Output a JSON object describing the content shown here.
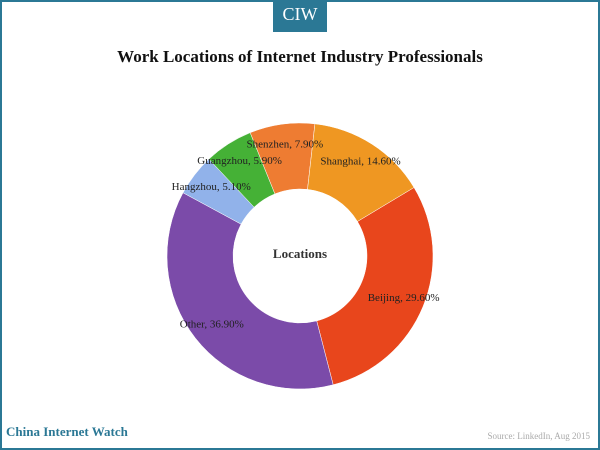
{
  "brand": "CIW",
  "chart_data": {
    "type": "donut",
    "title": "Work Locations of Internet Industry Professionals",
    "center_label": "Locations",
    "values": [
      29.6,
      36.9,
      5.1,
      5.9,
      7.9,
      14.6
    ],
    "value_labels": [
      "Beijing, 29.60%",
      "Other, 36.90%",
      "Hangzhou, 5.10%",
      "Guangzhou, 5.90%",
      "Shenzhen, 7.90%",
      "Shanghai, 14.60%"
    ],
    "colors": [
      "#e8461c",
      "#7b4ba9",
      "#91b2ea",
      "#45b136",
      "#ee7c32",
      "#ef9722"
    ]
  },
  "footer": {
    "site": "China Internet Watch",
    "source": "Source: LinkedIn, Aug 2015"
  }
}
